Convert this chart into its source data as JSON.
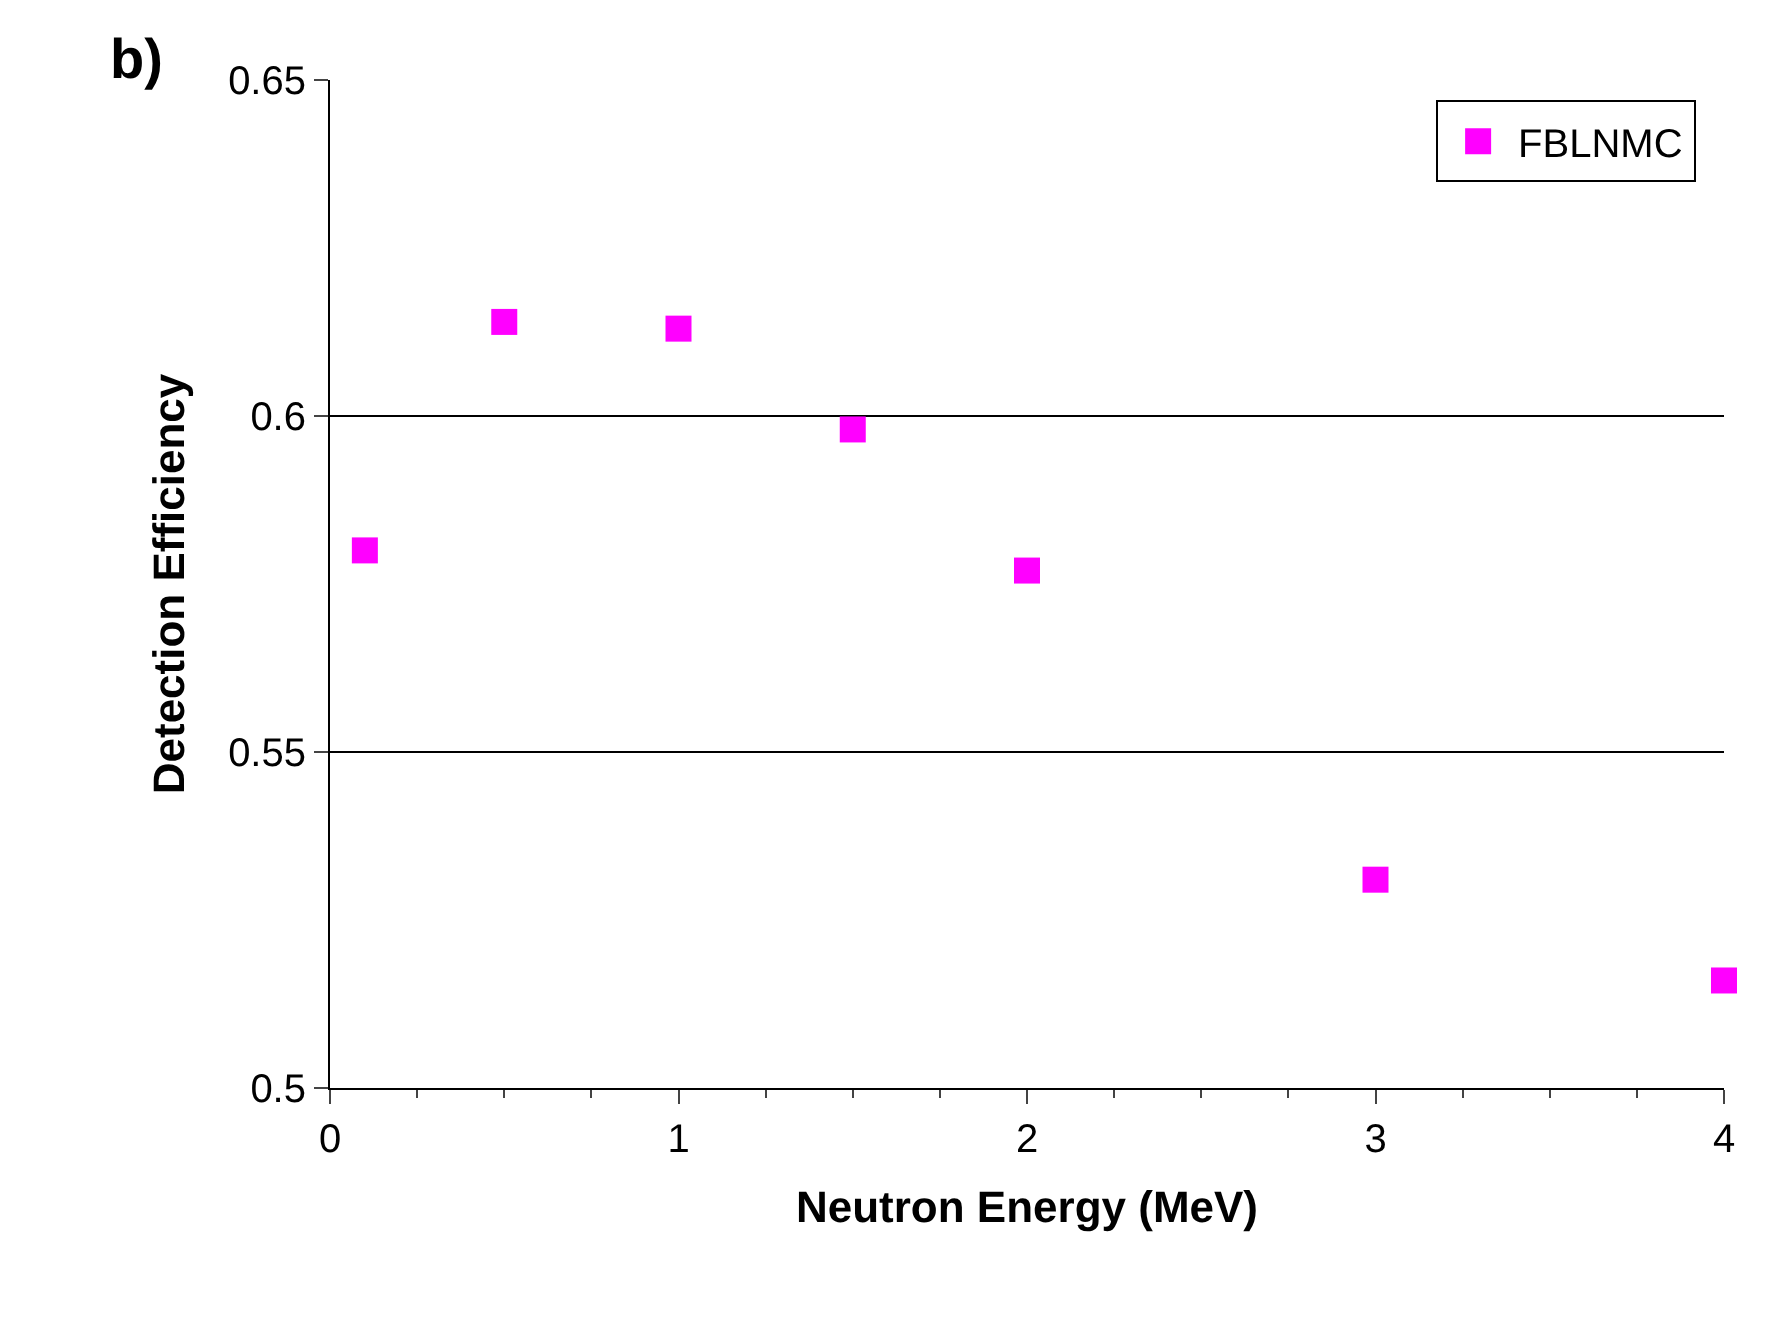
{
  "chart_data": {
    "type": "scatter",
    "xlabel": "Neutron Energy (MeV)",
    "ylabel": "Detection Efficiency",
    "annotations": [
      "b)"
    ],
    "x": [
      0.1,
      0.5,
      1,
      1.5,
      2,
      3,
      4
    ],
    "series": [
      {
        "name": "FBLNMC",
        "color": "#ff00ff",
        "values": [
          0.58,
          0.614,
          0.613,
          0.598,
          0.577,
          0.531,
          0.516
        ]
      }
    ],
    "xlim": [
      0,
      4
    ],
    "xticks": [
      0,
      1,
      2,
      3,
      4
    ],
    "ylim": [
      0.5,
      0.65
    ],
    "yticks": [
      0.5,
      0.55,
      0.6,
      0.65
    ],
    "grid": "y",
    "legend": "top right",
    "marker": "square"
  }
}
